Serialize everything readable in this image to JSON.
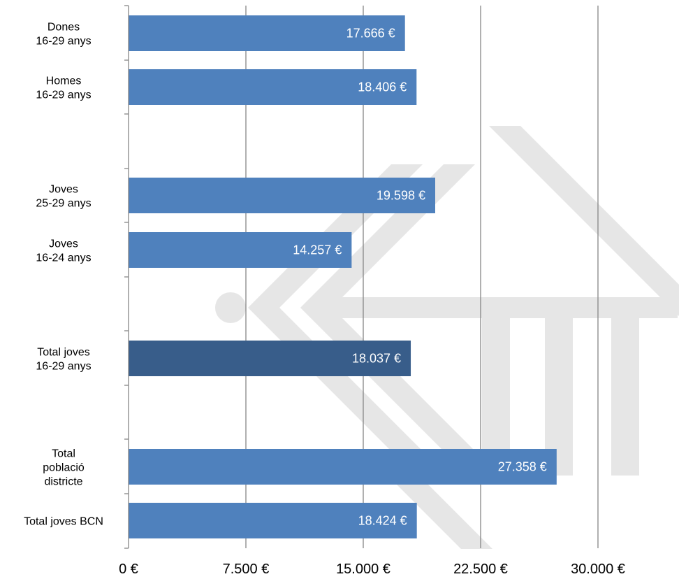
{
  "chart_data": {
    "type": "bar",
    "orientation": "horizontal",
    "categories": [
      [
        "Dones",
        "16-29 anys"
      ],
      [
        "Homes",
        "16-29 anys"
      ],
      [
        "Joves",
        "25-29 anys"
      ],
      [
        "Joves",
        "16-24 anys"
      ],
      [
        "Total joves",
        "16-29 anys"
      ],
      [
        "Total",
        "població",
        "districte"
      ],
      [
        "Total joves BCN"
      ]
    ],
    "values": [
      17666,
      18406,
      19598,
      14257,
      18037,
      27358,
      18424
    ],
    "value_labels": [
      "17.666 €",
      "18.406 €",
      "19.598 €",
      "14.257 €",
      "18.037 €",
      "27.358 €",
      "18.424 €"
    ],
    "highlight_index": 4,
    "xlim": [
      0,
      35000
    ],
    "x_ticks": [
      0,
      7500,
      15000,
      22500,
      30000
    ],
    "x_tick_labels": [
      "0 €",
      "7.500 €",
      "15.000 €",
      "22.500 €",
      "30.000 €"
    ],
    "grid": true,
    "colors": {
      "bar": "#4f81bd",
      "bar_highlight": "#385d8a",
      "gridline": "#868686",
      "axis": "#868686",
      "watermark": "#e6e6e6"
    }
  }
}
